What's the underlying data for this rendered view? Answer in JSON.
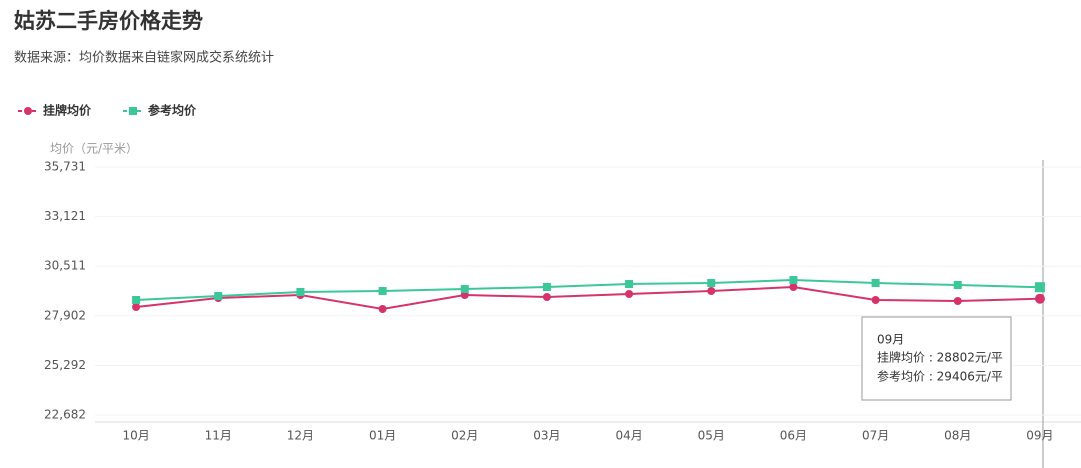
{
  "chart_data": {
    "type": "line",
    "title": "姑苏二手房价格走势",
    "subtitle": "数据来源：均价数据来自链家网成交系统统计",
    "y_axis_label": "均价（元/平米）",
    "categories": [
      "10月",
      "11月",
      "12月",
      "01月",
      "02月",
      "03月",
      "04月",
      "05月",
      "06月",
      "07月",
      "08月",
      "09月"
    ],
    "series": [
      {
        "name": "挂牌均价",
        "color": "#d6336c",
        "marker": "circle",
        "values": [
          28364,
          28838,
          28996,
          28259,
          28996,
          28890,
          29048,
          29206,
          29417,
          28733,
          28680,
          28802
        ]
      },
      {
        "name": "参考均价",
        "color": "#3cc79a",
        "marker": "square",
        "values": [
          28733,
          28943,
          29154,
          29206,
          29311,
          29417,
          29575,
          29627,
          29785,
          29627,
          29522,
          29406
        ]
      }
    ],
    "ylim": [
      22682,
      35731
    ],
    "yticks": [
      {
        "value": 22682,
        "label": "22,682"
      },
      {
        "value": 25292,
        "label": "25,292"
      },
      {
        "value": 27902,
        "label": "27,902"
      },
      {
        "value": 30511,
        "label": "30,511"
      },
      {
        "value": 33121,
        "label": "33,121"
      },
      {
        "value": 35731,
        "label": "35,731"
      }
    ],
    "grid": true,
    "tooltip": {
      "title": "09月",
      "lines": [
        "挂牌均价 : 28802元/平",
        "参考均价 : 29406元/平"
      ]
    }
  }
}
